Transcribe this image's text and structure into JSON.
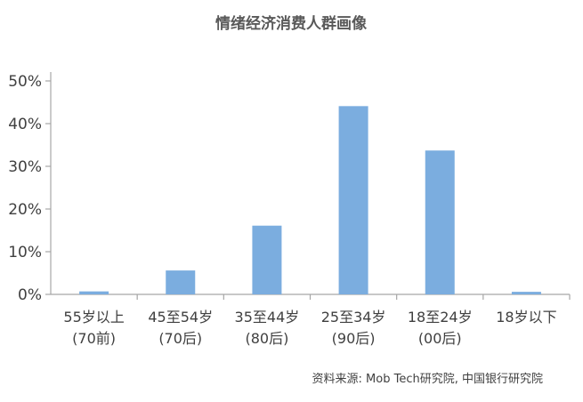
{
  "chart_data": {
    "type": "bar",
    "title": "情绪经济消费人群画像",
    "categories": [
      [
        "55岁以上",
        "(70前)"
      ],
      [
        "45至54岁",
        "(70后)"
      ],
      [
        "35至44岁",
        "(80后)"
      ],
      [
        "25至34岁",
        "(90后)"
      ],
      [
        "18至24岁",
        "(00后)"
      ],
      [
        "18岁以下",
        ""
      ]
    ],
    "values": [
      0.7,
      5.6,
      16.1,
      44.1,
      33.7,
      0.6
    ],
    "ylim": [
      0,
      50
    ],
    "yticks": [
      {
        "value": 0,
        "label": "0%"
      },
      {
        "value": 10,
        "label": "10%"
      },
      {
        "value": 20,
        "label": "20%"
      },
      {
        "value": 30,
        "label": "30%"
      },
      {
        "value": 40,
        "label": "40%"
      },
      {
        "value": 50,
        "label": "50%"
      }
    ],
    "xlabel": "",
    "ylabel": "",
    "grid": false,
    "legend": "none",
    "bar_color": "#7BADDF",
    "axis_color": "#A6A6A6",
    "source": "资料来源: Mob Tech研究院, 中国银行研究院"
  }
}
